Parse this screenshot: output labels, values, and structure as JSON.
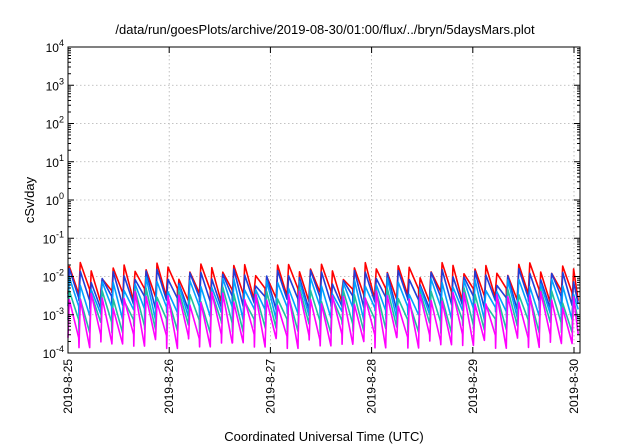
{
  "chart_data": {
    "type": "line",
    "title": "/data/run/goesPlots/archive/2019-08-30/01:00/flux/../bryn/5daysMars.plot",
    "xlabel": "Coordinated Universal Time (UTC)",
    "ylabel": "cSv/day",
    "y_scale": "log",
    "ylim": [
      0.0001,
      10000
    ],
    "xlim": [
      "2019-8-25",
      "2019-8-30 01:00"
    ],
    "x_tick_labels": [
      "2019-8-25",
      "2019-8-26",
      "2019-8-27",
      "2019-8-28",
      "2019-8-29",
      "2019-8-30"
    ],
    "y_ticks": [
      {
        "base": "10",
        "exp": "-4",
        "value": 0.0001
      },
      {
        "base": "10",
        "exp": "-3",
        "value": 0.001
      },
      {
        "base": "10",
        "exp": "-2",
        "value": 0.01
      },
      {
        "base": "10",
        "exp": "-1",
        "value": 0.1
      },
      {
        "base": "10",
        "exp": "0",
        "value": 1
      },
      {
        "base": "10",
        "exp": "1",
        "value": 10
      },
      {
        "base": "10",
        "exp": "2",
        "value": 100
      },
      {
        "base": "10",
        "exp": "3",
        "value": 1000
      },
      {
        "base": "10",
        "exp": "4",
        "value": 10000
      }
    ],
    "grid": true,
    "sawtooth_period_hours": 2.6,
    "series": [
      {
        "color": "#ff0000",
        "peak": 0.016,
        "trough": 0.0035
      },
      {
        "color": "#1f3fd9",
        "peak": 0.011,
        "trough": 0.0022
      },
      {
        "color": "#00a0ff",
        "peak": 0.0065,
        "trough": 0.0012
      },
      {
        "color": "#20c0a0",
        "peak": 0.0035,
        "trough": 0.00055
      },
      {
        "color": "#ff00ff",
        "peak": 0.0028,
        "trough": 0.00022
      }
    ]
  }
}
